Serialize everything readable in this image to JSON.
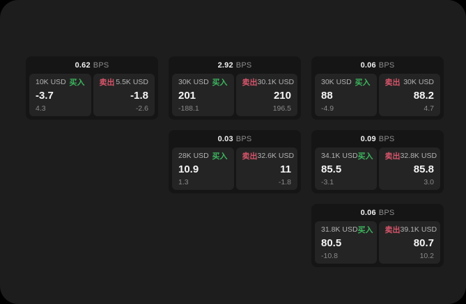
{
  "labels": {
    "buy": "买入",
    "sell": "卖出",
    "bps_unit": "BPS"
  },
  "colors": {
    "screen_bg": "#1d1d1d",
    "card_bg": "#151515",
    "panel_bg": "#242424",
    "buy_green": "#3cb55e",
    "sell_red": "#d5556a"
  },
  "cards": [
    {
      "bps": "0.62",
      "buy": {
        "amount": "10K USD",
        "price": "-3.7",
        "delta": "4.3"
      },
      "sell": {
        "amount": "5.5K USD",
        "price": "-1.8",
        "delta": "-2.6"
      }
    },
    {
      "bps": "2.92",
      "buy": {
        "amount": "30K USD",
        "price": "201",
        "delta": "-188.1"
      },
      "sell": {
        "amount": "30.1K USD",
        "price": "210",
        "delta": "196.5"
      }
    },
    {
      "bps": "0.06",
      "buy": {
        "amount": "30K USD",
        "price": "88",
        "delta": "-4.9"
      },
      "sell": {
        "amount": "30K USD",
        "price": "88.2",
        "delta": "4.7"
      }
    },
    {
      "bps": "0.03",
      "buy": {
        "amount": "28K USD",
        "price": "10.9",
        "delta": "1.3"
      },
      "sell": {
        "amount": "32.6K USD",
        "price": "11",
        "delta": "-1.8"
      }
    },
    {
      "bps": "0.09",
      "buy": {
        "amount": "34.1K USD",
        "price": "85.5",
        "delta": "-3.1"
      },
      "sell": {
        "amount": "32.8K USD",
        "price": "85.8",
        "delta": "3.0"
      }
    },
    {
      "bps": "0.06",
      "buy": {
        "amount": "31.8K USD",
        "price": "80.5",
        "delta": "-10.8"
      },
      "sell": {
        "amount": "39.1K USD",
        "price": "80.7",
        "delta": "10.2"
      }
    }
  ]
}
